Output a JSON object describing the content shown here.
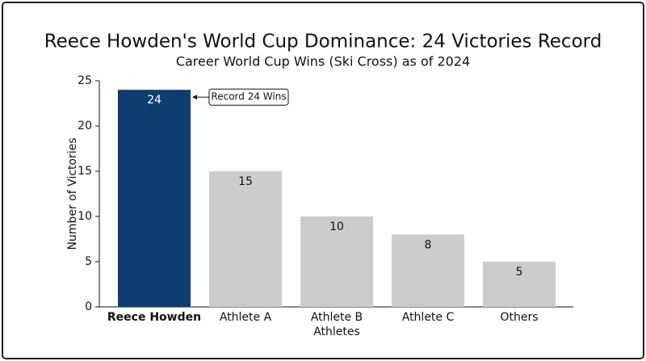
{
  "chart_data": {
    "type": "bar",
    "title": "Reece Howden's World Cup Dominance: 24 Victories Record",
    "subtitle": "Career World Cup Wins (Ski Cross) as of 2024",
    "y_label": "Number of Victories",
    "categories": [
      "Reece Howden",
      "Athlete A",
      "Athlete B\nAthletes",
      "Athlete C",
      "Others"
    ],
    "values": [
      24,
      15,
      10,
      8,
      5
    ],
    "colors": [
      "#0e3d70",
      "#cccccc",
      "#cccccc",
      "#cccccc",
      "#cccccc"
    ],
    "ylim": [
      0,
      25
    ],
    "yticks": [
      0,
      5,
      10,
      15,
      20,
      25
    ],
    "annotation": "Record 24 Wins"
  }
}
